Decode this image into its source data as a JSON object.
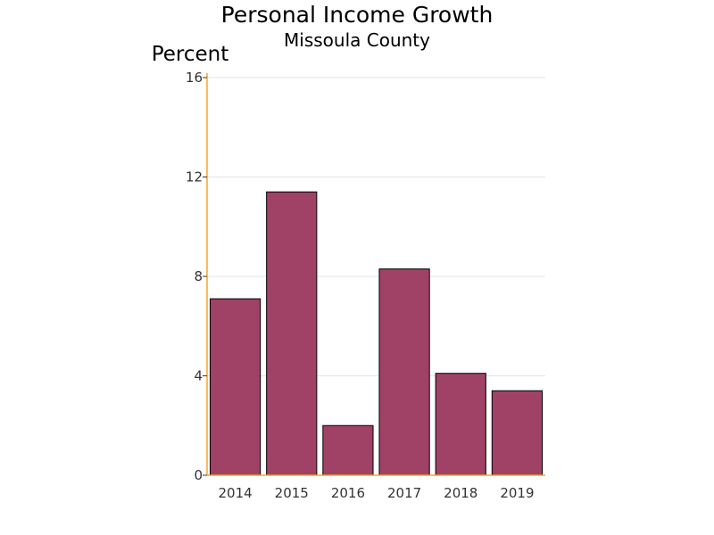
{
  "chart_data": {
    "type": "bar",
    "title": "Personal Income Growth",
    "subtitle": "Missoula County",
    "ylabel": "Percent",
    "xlabel": "",
    "categories": [
      "2014",
      "2015",
      "2016",
      "2017",
      "2018",
      "2019"
    ],
    "values": [
      7.1,
      11.4,
      2.0,
      8.3,
      4.1,
      3.4
    ],
    "ylim": [
      0,
      16
    ],
    "yticks": [
      0,
      4,
      8,
      12,
      16
    ],
    "grid": true,
    "legend": "none",
    "colors": {
      "bar": "#a04266",
      "axis": "#f5a623"
    }
  }
}
